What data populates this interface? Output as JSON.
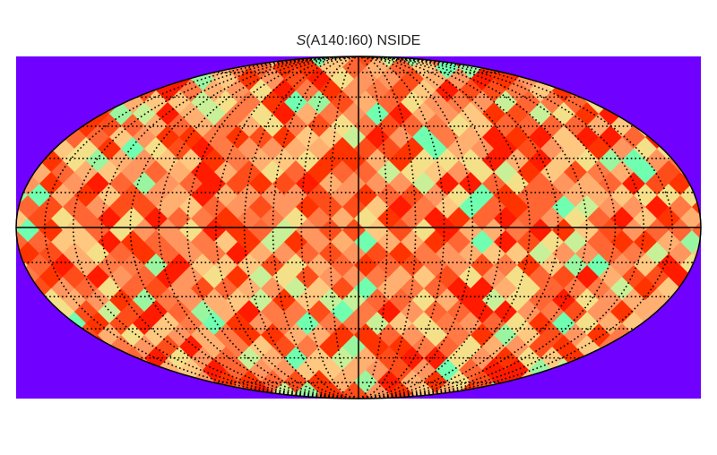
{
  "title": {
    "symbol": "S",
    "rest": "(A140:I60) NSIDE"
  },
  "map": {
    "projection": "mollweide",
    "colors": {
      "background": "#7000ff",
      "outline": "#000000",
      "graticule": "#000000",
      "palette": [
        "#ff1a00",
        "#ff3300",
        "#ff4d1a",
        "#ff6633",
        "#ff7a45",
        "#ff9660",
        "#ffb070",
        "#ffc880",
        "#f5e08a",
        "#c8f098",
        "#9af5a0",
        "#70ffb0"
      ]
    },
    "graticule": {
      "meridian_step_deg": 15,
      "parallel_step_deg": 15,
      "style": "dotted",
      "solid_lines": [
        "central-meridian",
        "equator"
      ]
    },
    "pattern_seed": 140
  }
}
